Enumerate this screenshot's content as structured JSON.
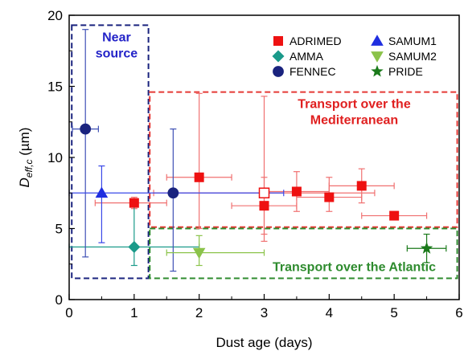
{
  "chart_data": {
    "type": "scatter",
    "xlabel": "Dust age (days)",
    "ylabel_main": "D",
    "ylabel_sub": "eff,c",
    "ylabel_unit": " (µm)",
    "xlim": [
      0,
      6
    ],
    "ylim": [
      0,
      20
    ],
    "xticks": [
      0,
      1,
      2,
      3,
      4,
      5,
      6
    ],
    "yticks": [
      0,
      5,
      10,
      15,
      20
    ],
    "grid": false,
    "legend_placement": "top-right",
    "regions": [
      {
        "id": "near-source",
        "lines": [
          "Near",
          "source"
        ],
        "x": [
          0.04,
          1.22
        ],
        "y": [
          1.5,
          19.3
        ],
        "color": "#1a237e",
        "text_color": "#2323c8"
      },
      {
        "id": "transport-mediterranean",
        "lines": [
          "Transport over the",
          "Mediterranean"
        ],
        "x": [
          1.24,
          5.97
        ],
        "y": [
          5.1,
          14.6
        ],
        "color": "#e53935",
        "text_color": "#e02020"
      },
      {
        "id": "transport-atlantic",
        "lines": [
          "Transport over the Atlantic"
        ],
        "x": [
          1.24,
          5.97
        ],
        "y": [
          1.5,
          5.0
        ],
        "color": "#2e8b2e",
        "text_color": "#2e8b2e"
      }
    ],
    "series": [
      {
        "name": "ADRIMED",
        "marker": "square",
        "color": "#ee1111",
        "err_color": "#f07070",
        "points": [
          {
            "x": 1.0,
            "y": 6.8,
            "xerr": [
              0.6,
              0.5
            ],
            "yerr": [
              0.4,
              0.4
            ]
          },
          {
            "x": 2.0,
            "y": 8.6,
            "xerr": [
              0.5,
              0.5
            ],
            "yerr": [
              3.6,
              5.9
            ]
          },
          {
            "x": 3.0,
            "y": 6.6,
            "xerr": [
              0.5,
              0.5
            ],
            "yerr": [
              2.0,
              2.0
            ]
          },
          {
            "x": 3.0,
            "y": 7.5,
            "xerr": [
              1.7,
              1.7
            ],
            "yerr": [
              3.4,
              6.8
            ],
            "hollow": true
          },
          {
            "x": 3.5,
            "y": 7.6,
            "xerr": [
              0.5,
              0.5
            ],
            "yerr": [
              1.4,
              1.4
            ]
          },
          {
            "x": 4.0,
            "y": 7.2,
            "xerr": [
              0.5,
              0.5
            ],
            "yerr": [
              1.0,
              1.4
            ]
          },
          {
            "x": 4.5,
            "y": 8.0,
            "xerr": [
              0.5,
              0.5
            ],
            "yerr": [
              1.2,
              1.2
            ]
          },
          {
            "x": 5.0,
            "y": 5.9,
            "xerr": [
              0.5,
              0.5
            ],
            "yerr": [
              0,
              0
            ]
          }
        ]
      },
      {
        "name": "AMMA",
        "marker": "diamond",
        "color": "#1a9a8a",
        "err_color": "#1a9a8a",
        "points": [
          {
            "x": 1.0,
            "y": 3.7,
            "xerr": [
              1.0,
              1.0
            ],
            "yerr": [
              1.3,
              3.1
            ]
          }
        ]
      },
      {
        "name": "FENNEC",
        "marker": "circle",
        "color": "#1a237e",
        "err_color": "#3f51b5",
        "points": [
          {
            "x": 0.25,
            "y": 12.0,
            "xerr": [
              0.2,
              0.2
            ],
            "yerr": [
              9.0,
              7.0
            ]
          },
          {
            "x": 1.6,
            "y": 7.5,
            "xerr": [
              0,
              0
            ],
            "yerr": [
              5.5,
              4.5
            ]
          }
        ]
      },
      {
        "name": "SAMUM1",
        "marker": "triangle-up",
        "color": "#1f2ee0",
        "err_color": "#3a48e8",
        "points": [
          {
            "x": 0.5,
            "y": 7.5,
            "xerr": [
              0.5,
              2.8
            ],
            "yerr": [
              3.5,
              1.9
            ]
          }
        ]
      },
      {
        "name": "SAMUM2",
        "marker": "triangle-down",
        "color": "#8bc34a",
        "err_color": "#8bc34a",
        "points": [
          {
            "x": 2.0,
            "y": 3.3,
            "xerr": [
              0.5,
              1.0
            ],
            "yerr": [
              0.9,
              1.2
            ]
          }
        ]
      },
      {
        "name": "PRIDE",
        "marker": "star",
        "color": "#1b7a1b",
        "err_color": "#1b7a1b",
        "points": [
          {
            "x": 5.5,
            "y": 3.6,
            "xerr": [
              0.3,
              0.3
            ],
            "yerr": [
              1.0,
              1.0
            ]
          }
        ]
      }
    ]
  }
}
